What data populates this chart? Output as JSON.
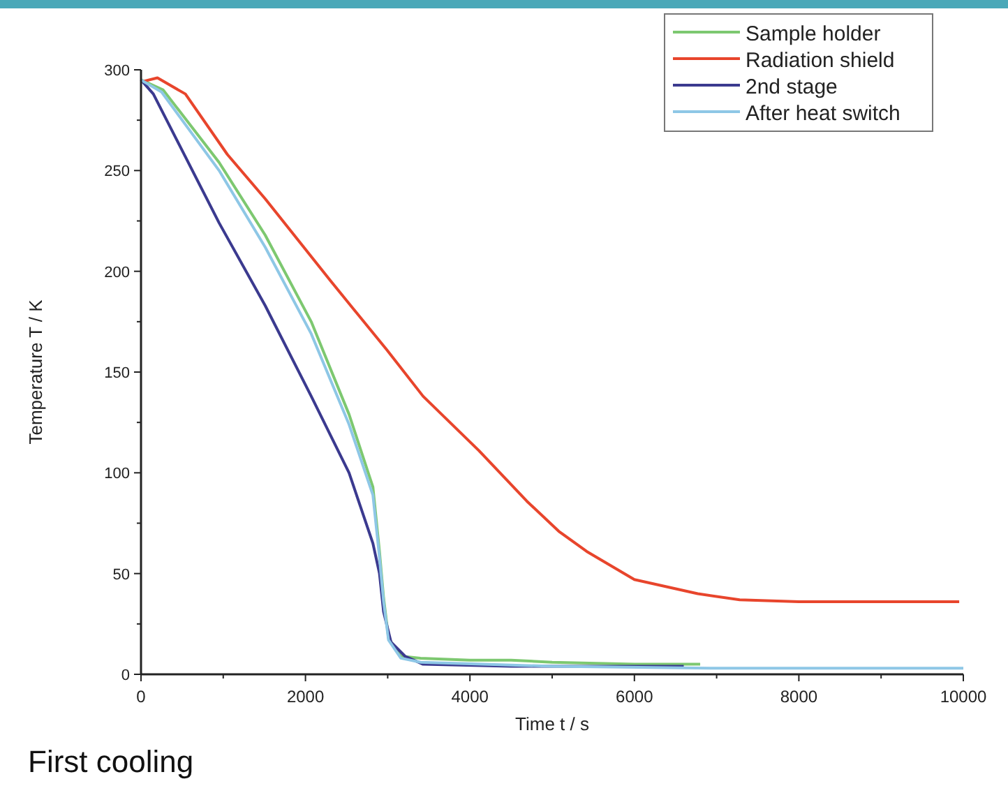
{
  "chart_data": {
    "type": "line",
    "xlabel": "Time t / s",
    "ylabel": "Temperature T / K",
    "annotations": [
      "First cooling"
    ],
    "xlim": [
      0,
      10000
    ],
    "ylim": [
      0,
      300
    ],
    "xticks": [
      0,
      {
        "value": 1000,
        "label": null
      },
      2000,
      {
        "value": 3000,
        "label": null
      },
      4000,
      {
        "value": 5000,
        "label": null
      },
      6000,
      {
        "value": 7000,
        "label": null
      },
      8000,
      {
        "value": 9000,
        "label": null
      },
      10000
    ],
    "yticks": [
      0,
      {
        "value": 25,
        "label": null
      },
      50,
      {
        "value": 75,
        "label": null
      },
      100,
      {
        "value": 125,
        "label": null
      },
      150,
      {
        "value": 175,
        "label": null
      },
      200,
      {
        "value": 225,
        "label": null
      },
      250,
      {
        "value": 275,
        "label": null
      },
      300
    ],
    "grid": false,
    "legend": "top right",
    "line_style": "solid",
    "marker": "none",
    "series": [
      {
        "name": "Sample holder",
        "color": "#7dc870",
        "x": [
          0,
          270,
          950,
          1510,
          2070,
          2530,
          2820,
          2900,
          2950,
          3010,
          3160,
          3400,
          4000,
          4500,
          5000,
          6000,
          6800
        ],
        "values": [
          295,
          290,
          254,
          218,
          175,
          129,
          93,
          61,
          38,
          18,
          9,
          8,
          7,
          7,
          6,
          5,
          5
        ]
      },
      {
        "name": "Radiation shield",
        "color": "#e8452c",
        "x": [
          0,
          200,
          540,
          1050,
          1510,
          2310,
          2990,
          3430,
          4110,
          4690,
          5080,
          5420,
          6000,
          6770,
          7280,
          8000,
          9000,
          9950
        ],
        "values": [
          294,
          296,
          288,
          258,
          236,
          195,
          161,
          138,
          111,
          86,
          71,
          61,
          47,
          40,
          37,
          36,
          36,
          36
        ]
      },
      {
        "name": "2nd stage",
        "color": "#3b3a8f",
        "x": [
          0,
          150,
          950,
          1510,
          2070,
          2530,
          2820,
          2900,
          2950,
          3040,
          3210,
          3430,
          4500,
          5500,
          6600
        ],
        "values": [
          295,
          288,
          224,
          183,
          138,
          100,
          65,
          50,
          31,
          16,
          9,
          5,
          4,
          4,
          4
        ]
      },
      {
        "name": "After heat switch",
        "color": "#8ec7e6",
        "x": [
          0,
          250,
          950,
          1510,
          2070,
          2530,
          2820,
          2900,
          2950,
          3010,
          3160,
          3400,
          5000,
          7000,
          10000
        ],
        "values": [
          295,
          289,
          250,
          212,
          169,
          124,
          89,
          58,
          36,
          17,
          8,
          6,
          4,
          3,
          3
        ]
      }
    ]
  }
}
